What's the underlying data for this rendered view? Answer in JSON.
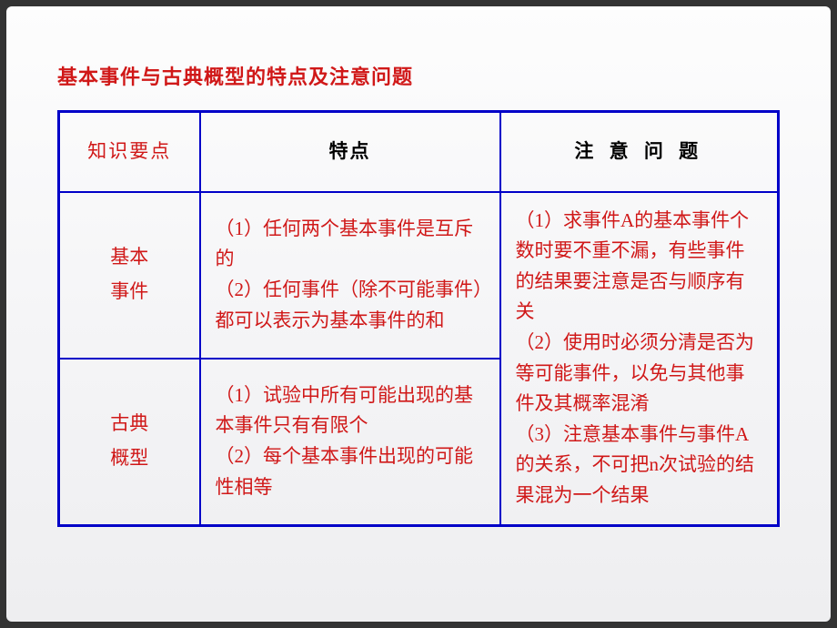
{
  "title": "基本事件与古典概型的特点及注意问题",
  "table": {
    "headers": {
      "col1": "知识要点",
      "col2": "特点",
      "col3": "注 意 问 题"
    },
    "rows": {
      "row1": {
        "label": "基本\n事件",
        "features": "（1）任何两个基本事件是互斥的\n（2）任何事件（除不可能事件）都可以表示为基本事件的和"
      },
      "row2": {
        "label": "古典\n概型",
        "features": "（1）试验中所有可能出现的基本事件只有有限个\n（2）每个基本事件出现的可能性相等"
      },
      "notice_merged": "（1）求事件A的基本事件个数时要不重不漏，有些事件的结果要注意是否与顺序有关\n（2）使用时必须分清是否为等可能事件，以免与其他事件及其概率混淆\n（3）注意基本事件与事件A的关系，不可把n次试验的结果混为一个结果"
    }
  },
  "styling": {
    "border_color": "#0000c8",
    "text_red": "#d01818",
    "header_black": "#000000",
    "slide_bg_top": "#fdfdfd",
    "slide_bg_bottom": "#eeeef0",
    "outer_bg": "#333333",
    "title_fontsize": 22,
    "cell_fontsize": 21,
    "border_outer_width": 3,
    "border_inner_width": 2
  }
}
